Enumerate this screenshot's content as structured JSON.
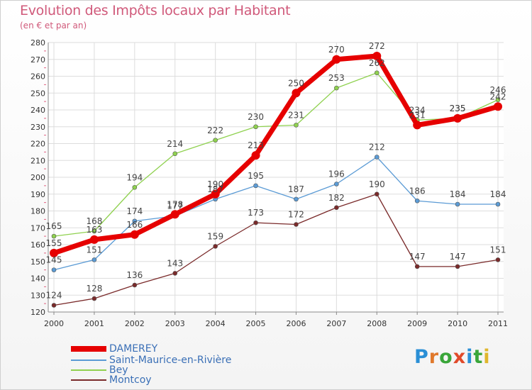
{
  "header": {
    "title": "Evolution des Impôts locaux par Habitant",
    "subtitle": "(en € et par an)"
  },
  "logo": {
    "text": "Proxiti",
    "letters": [
      {
        "ch": "P",
        "color": "#2a8fd6"
      },
      {
        "ch": "r",
        "color": "#e0792c"
      },
      {
        "ch": "o",
        "color": "#3aa63a"
      },
      {
        "ch": "x",
        "color": "#e04a2a"
      },
      {
        "ch": "i",
        "color": "#2a8fd6"
      },
      {
        "ch": "t",
        "color": "#3aa63a"
      },
      {
        "ch": "i",
        "color": "#e0b62c"
      }
    ]
  },
  "chart_data": {
    "type": "line",
    "title": "Evolution des Impôts locaux par Habitant",
    "subtitle": "(en € et par an)",
    "xlabel": "",
    "ylabel": "",
    "x": [
      "2000",
      "2001",
      "2002",
      "2003",
      "2004",
      "2005",
      "2006",
      "2007",
      "2008",
      "2009",
      "2010",
      "2011"
    ],
    "ylim": [
      120,
      280
    ],
    "yticks": [
      120,
      130,
      140,
      150,
      160,
      170,
      180,
      190,
      200,
      210,
      220,
      230,
      240,
      250,
      260,
      270,
      280
    ],
    "grid": true,
    "legend_position": "bottom-left",
    "series": [
      {
        "name": "DAMEREY",
        "color": "#e60000",
        "values": [
          155,
          163,
          166,
          178,
          190,
          213,
          250,
          270,
          272,
          231,
          235,
          242
        ],
        "labels": [
          "155",
          "163",
          "166",
          "178",
          "190",
          "213",
          "250",
          "270",
          "272",
          "231",
          "235",
          "242"
        ]
      },
      {
        "name": "Saint-Maurice-en-Rivière",
        "color": "#5b9bd5",
        "values": [
          145,
          151,
          174,
          177,
          187,
          195,
          187,
          196,
          212,
          186,
          184,
          184
        ],
        "labels": [
          "145",
          "151",
          "174",
          "177",
          "187",
          "195",
          "187",
          "196",
          "212",
          "186",
          "184",
          "184"
        ]
      },
      {
        "name": "Bey",
        "color": "#8fd14f",
        "values": [
          165,
          168,
          194,
          214,
          222,
          230,
          231,
          253,
          262,
          234,
          235,
          246
        ],
        "labels": [
          "165",
          "168",
          "194",
          "214",
          "222",
          "230",
          "231",
          "253",
          "262",
          "234",
          "235",
          "246"
        ]
      },
      {
        "name": "Montcoy",
        "color": "#7a2a2a",
        "values": [
          124,
          128,
          136,
          143,
          159,
          173,
          172,
          182,
          190,
          147,
          147,
          151
        ],
        "labels": [
          "124",
          "128",
          "136",
          "143",
          "159",
          "173",
          "172",
          "182",
          "190",
          "147",
          "147",
          "151"
        ]
      }
    ]
  }
}
